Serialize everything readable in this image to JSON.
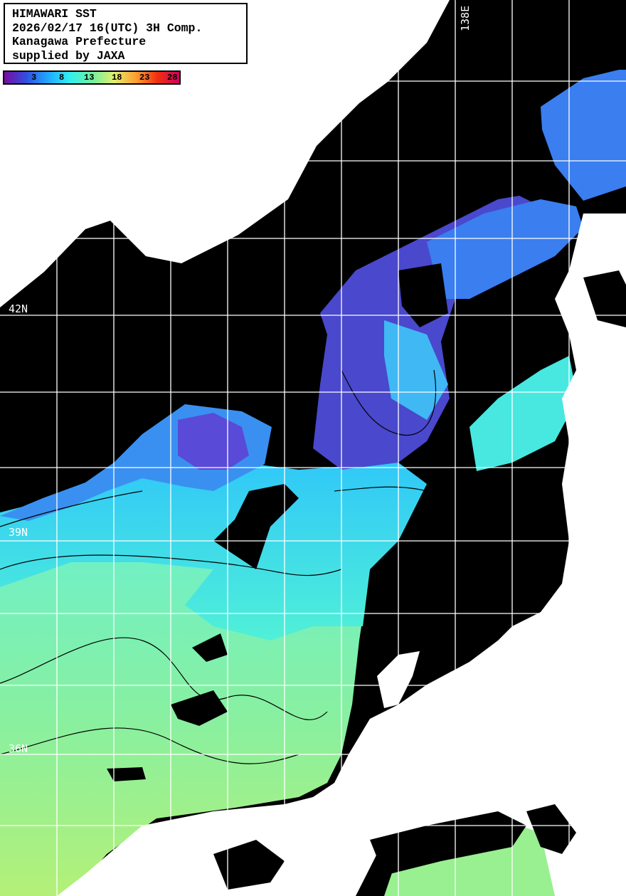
{
  "legend": {
    "lines": [
      "HIMAWARI SST",
      "2026/02/17 16(UTC) 3H Comp.",
      "Kanagawa Prefecture",
      "supplied by JAXA"
    ]
  },
  "colorbar": {
    "ticks": [
      "3",
      "8",
      "13",
      "18",
      "23",
      "28"
    ],
    "colors": [
      "#7a0aa0",
      "#3050e0",
      "#20a8ff",
      "#30f0f0",
      "#70f0a0",
      "#e0f070",
      "#ffa030",
      "#f03010",
      "#d00060"
    ]
  },
  "grid_labels": {
    "lat_42": "42N",
    "lat_39": "39N",
    "lat_36": "36N",
    "lon_138": "138E"
  },
  "colors": {
    "land": "#ffffff",
    "no_data": "#000000",
    "grid": "#ffffff",
    "contour": "#000000"
  }
}
